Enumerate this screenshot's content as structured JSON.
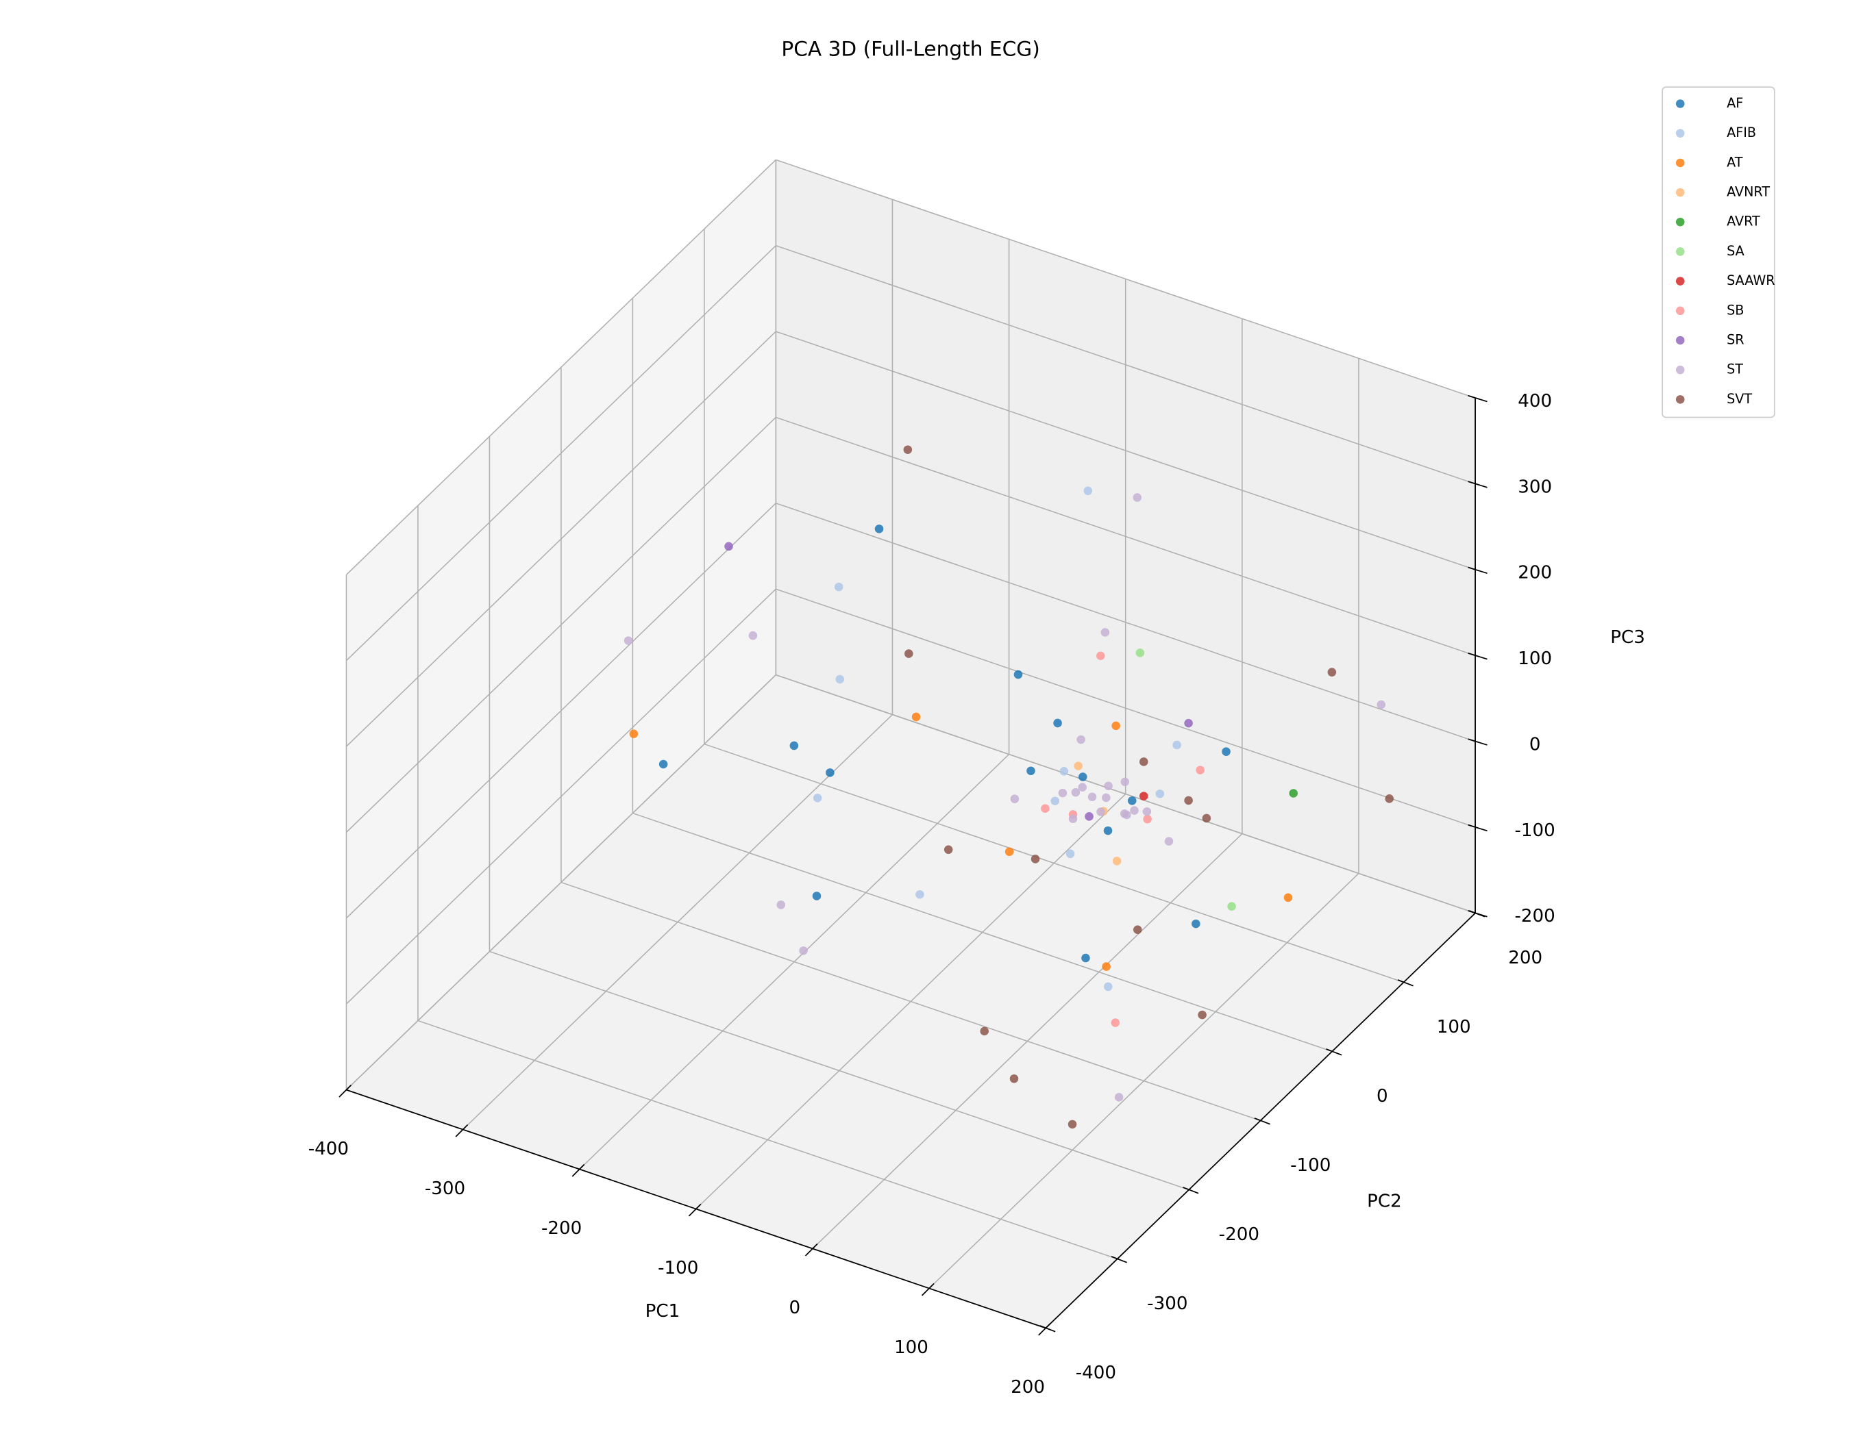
{
  "chart_data": {
    "type": "scatter3d",
    "title": "PCA 3D (Full-Length ECG)",
    "xlabel": "PC1",
    "ylabel": "PC2",
    "zlabel": "PC3",
    "xlim": [
      -400,
      200
    ],
    "ylim": [
      -400,
      200
    ],
    "zlim": [
      -200,
      400
    ],
    "xticks": [
      -400,
      -300,
      -200,
      -100,
      0,
      100,
      200
    ],
    "yticks": [
      -400,
      -300,
      -200,
      -100,
      0,
      100,
      200
    ],
    "zticks": [
      -200,
      -100,
      0,
      100,
      200,
      300,
      400
    ],
    "grid": true,
    "legend": "upper right",
    "series": [
      {
        "name": "AF",
        "color": "#1f77b4",
        "x": [
          -250,
          -200,
          -150,
          -300,
          50,
          -60,
          -20,
          20,
          60,
          -100,
          120,
          -280,
          10,
          -40
        ],
        "y": [
          100,
          -50,
          -150,
          -120,
          -100,
          40,
          10,
          -20,
          80,
          50,
          -60,
          30,
          30,
          -30
        ],
        "z": [
          120,
          -20,
          -60,
          0,
          -80,
          30,
          10,
          -10,
          20,
          60,
          -40,
          -90,
          -20,
          40
        ]
      },
      {
        "name": "AFIB",
        "color": "#aec7e8",
        "x": [
          -120,
          -260,
          -180,
          -30,
          0,
          40,
          -80,
          100,
          -210,
          30,
          -50
        ],
        "y": [
          180,
          60,
          -100,
          0,
          -40,
          20,
          -120,
          -150,
          -20,
          60,
          20
        ],
        "z": [
          160,
          80,
          0,
          20,
          -30,
          10,
          -50,
          -50,
          60,
          30,
          -40
        ]
      },
      {
        "name": "AT",
        "color": "#ff7f0e",
        "x": [
          -350,
          -120,
          80,
          -10,
          150,
          -40
        ],
        "y": [
          -80,
          -60,
          -120,
          40,
          20,
          -60
        ],
        "z": [
          -20,
          90,
          -60,
          50,
          -60,
          -30
        ]
      },
      {
        "name": "AVNRT",
        "color": "#ffbb78",
        "x": [
          10,
          -30,
          40
        ],
        "y": [
          -10,
          20,
          -40
        ],
        "z": [
          0,
          10,
          -20
        ]
      },
      {
        "name": "AVRT",
        "color": "#2ca02c",
        "x": [
          130
        ],
        "y": [
          60
        ],
        "z": [
          20
        ]
      },
      {
        "name": "SA",
        "color": "#98df8a",
        "x": [
          -20,
          120
        ],
        "y": [
          90,
          -10
        ],
        "z": [
          90,
          -60
        ]
      },
      {
        "name": "SAAWR",
        "color": "#d62728",
        "x": [
          20
        ],
        "y": [
          30
        ],
        "z": [
          -10
        ]
      },
      {
        "name": "SB",
        "color": "#ff9896",
        "x": [
          -60,
          60,
          -10,
          100,
          50,
          -40
        ],
        "y": [
          100,
          -30,
          -20,
          -140,
          60,
          -10
        ],
        "z": [
          60,
          30,
          -5,
          -100,
          10,
          -20
        ]
      },
      {
        "name": "SR",
        "color": "#9467bd",
        "x": [
          -317,
          40,
          10
        ],
        "y": [
          -1,
          60,
          -30
        ],
        "z": [
          150,
          60,
          10
        ]
      },
      {
        "name": "ST",
        "color": "#c5b0d5",
        "x": [
          -330,
          -260,
          -90,
          -100,
          -150,
          140,
          -50,
          -20,
          10,
          -10,
          30,
          0,
          -40,
          20,
          60,
          -60,
          150,
          5,
          -15,
          25,
          -5,
          15,
          -25,
          35
        ],
        "y": [
          -120,
          -60,
          200,
          -250,
          -200,
          -200,
          90,
          0,
          20,
          -20,
          -10,
          10,
          40,
          -30,
          0,
          -20,
          150,
          5,
          15,
          -5,
          -15,
          25,
          -10,
          10
        ],
        "z": [
          130,
          120,
          150,
          -20,
          -30,
          -120,
          100,
          0,
          10,
          -10,
          5,
          -5,
          20,
          20,
          -20,
          -10,
          60,
          15,
          -15,
          0,
          25,
          -25,
          5,
          -5
        ]
      },
      {
        "name": "SVT",
        "color": "#8c564b",
        "x": [
          -250,
          -200,
          50,
          100,
          0,
          120,
          150,
          -80,
          40,
          70,
          200,
          -30,
          20,
          80
        ],
        "y": [
          140,
          60,
          -200,
          -200,
          -160,
          130,
          -100,
          -80,
          60,
          -60,
          80,
          -40,
          30,
          20
        ],
        "z": [
          180,
          30,
          -140,
          -170,
          -140,
          100,
          -100,
          -30,
          -30,
          -70,
          30,
          -50,
          30,
          0
        ]
      }
    ]
  }
}
